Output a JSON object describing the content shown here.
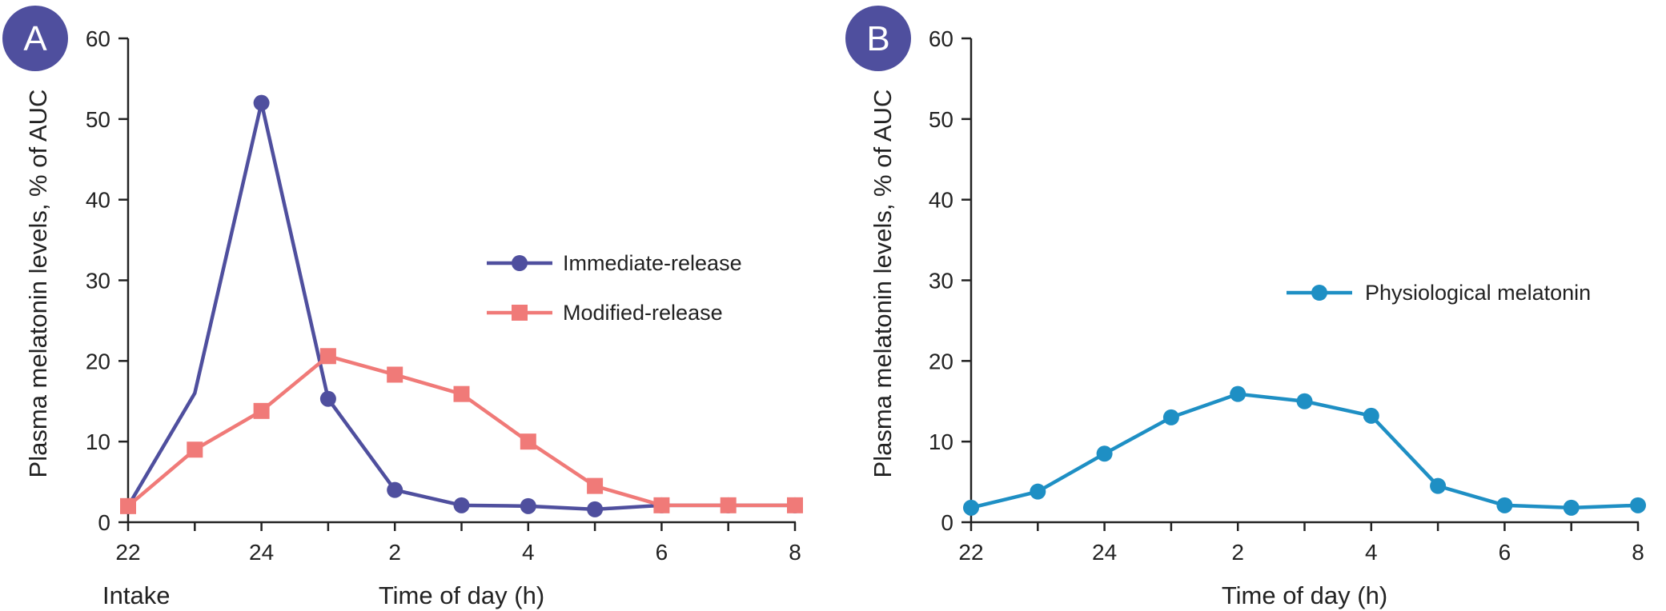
{
  "chart_data": [
    {
      "type": "line",
      "panel_label": "A",
      "badge_color": "#4f4f9e",
      "xlabel": "Time of day (h)",
      "ylabel": "Plasma melatonin levels, % of AUC",
      "x_annotation": "Intake",
      "ylim": [
        0,
        60
      ],
      "yticks": [
        0,
        10,
        20,
        30,
        40,
        50,
        60
      ],
      "xticks": [
        "22",
        "24",
        "2",
        "4",
        "6",
        "8"
      ],
      "x_hours": [
        22,
        23,
        24,
        25,
        26,
        27,
        28,
        29,
        30,
        31,
        32
      ],
      "legend_placement": "center-right",
      "series": [
        {
          "name": "Immediate-release",
          "color": "#4f4f9e",
          "marker": "circle",
          "x": [
            22,
            23,
            24,
            25,
            26,
            27,
            28,
            29,
            30,
            31,
            32
          ],
          "values": [
            2,
            16,
            52,
            15.3,
            4,
            2.1,
            2,
            1.6,
            2.1,
            2.1,
            2.1
          ],
          "markers_on": [
            true,
            false,
            true,
            true,
            true,
            true,
            true,
            true,
            true,
            true,
            true
          ]
        },
        {
          "name": "Modified-release",
          "color": "#f07a78",
          "marker": "square",
          "x": [
            22,
            23,
            24,
            25,
            26,
            27,
            28,
            29,
            30,
            31,
            32
          ],
          "values": [
            2,
            9,
            13.8,
            20.6,
            18.3,
            15.9,
            10,
            4.5,
            2.1,
            2.1,
            2.1
          ],
          "markers_on": [
            true,
            true,
            true,
            true,
            true,
            true,
            true,
            true,
            true,
            true,
            true
          ]
        }
      ]
    },
    {
      "type": "line",
      "panel_label": "B",
      "badge_color": "#4f4f9e",
      "xlabel": "Time of day (h)",
      "ylabel": "Plasma melatonin levels, % of AUC",
      "ylim": [
        0,
        60
      ],
      "yticks": [
        0,
        10,
        20,
        30,
        40,
        50,
        60
      ],
      "xticks": [
        "22",
        "24",
        "2",
        "4",
        "6",
        "8"
      ],
      "x_hours": [
        22,
        23,
        24,
        25,
        26,
        27,
        28,
        29,
        30,
        31,
        32
      ],
      "legend_placement": "center-right",
      "series": [
        {
          "name": "Physiological melatonin",
          "color": "#1e8fc4",
          "marker": "circle",
          "x": [
            22,
            23,
            24,
            25,
            26,
            27,
            28,
            29,
            30,
            31,
            32
          ],
          "values": [
            1.8,
            3.8,
            8.5,
            13,
            15.9,
            15,
            13.2,
            4.5,
            2.1,
            1.8,
            2.1
          ],
          "markers_on": [
            true,
            true,
            true,
            true,
            true,
            true,
            true,
            true,
            true,
            true,
            true
          ]
        }
      ]
    }
  ]
}
